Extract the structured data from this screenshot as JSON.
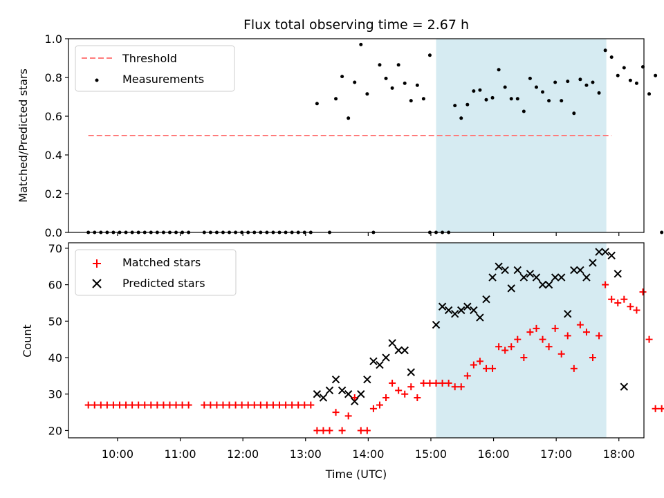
{
  "chart_data": [
    {
      "type": "scatter",
      "title": "Flux total observing time = 2.67 h",
      "ylabel": "Matched/Predicted stars",
      "ylim": [
        0,
        1.0
      ],
      "yticks": [
        0.0,
        0.2,
        0.4,
        0.6,
        0.8,
        1.0
      ],
      "ytick_labels": [
        "0.0",
        "0.2",
        "0.4",
        "0.6",
        "0.8",
        "1.0"
      ],
      "legend": {
        "placement": "top-left",
        "entries": [
          "Threshold",
          "Measurements"
        ]
      },
      "threshold": {
        "name": "Threshold",
        "value": 0.5,
        "x_range": [
          "09:32",
          "17:53"
        ],
        "color": "#ff7b7b"
      },
      "shaded_region": {
        "x": [
          "15:05",
          "17:48"
        ],
        "color": "#add8e6"
      },
      "series": [
        {
          "name": "Measurements",
          "color": "#000000",
          "points": [
            [
              "09:32",
              0
            ],
            [
              "09:38",
              0
            ],
            [
              "09:44",
              0
            ],
            [
              "09:50",
              0
            ],
            [
              "09:56",
              0
            ],
            [
              "10:02",
              0
            ],
            [
              "10:08",
              0
            ],
            [
              "10:14",
              0
            ],
            [
              "10:20",
              0
            ],
            [
              "10:26",
              0
            ],
            [
              "10:32",
              0
            ],
            [
              "10:38",
              0
            ],
            [
              "10:44",
              0
            ],
            [
              "10:50",
              0
            ],
            [
              "10:56",
              0
            ],
            [
              "11:02",
              0
            ],
            [
              "11:08",
              0
            ],
            [
              "11:23",
              0
            ],
            [
              "11:29",
              0
            ],
            [
              "11:35",
              0
            ],
            [
              "11:41",
              0
            ],
            [
              "11:47",
              0
            ],
            [
              "11:53",
              0
            ],
            [
              "11:59",
              0
            ],
            [
              "12:05",
              0
            ],
            [
              "12:11",
              0
            ],
            [
              "12:17",
              0
            ],
            [
              "12:23",
              0
            ],
            [
              "12:29",
              0
            ],
            [
              "12:35",
              0
            ],
            [
              "12:41",
              0
            ],
            [
              "12:47",
              0
            ],
            [
              "12:53",
              0
            ],
            [
              "12:59",
              0
            ],
            [
              "13:05",
              0
            ],
            [
              "13:11",
              0.665
            ],
            [
              "13:23",
              0
            ],
            [
              "13:29",
              0.69
            ],
            [
              "13:35",
              0.805
            ],
            [
              "13:41",
              0.59
            ],
            [
              "13:47",
              0.775
            ],
            [
              "13:53",
              0.97
            ],
            [
              "13:59",
              0.715
            ],
            [
              "14:05",
              0
            ],
            [
              "14:11",
              0.865
            ],
            [
              "14:17",
              0.795
            ],
            [
              "14:23",
              0.745
            ],
            [
              "14:29",
              0.865
            ],
            [
              "14:35",
              0.77
            ],
            [
              "14:41",
              0.68
            ],
            [
              "14:47",
              0.76
            ],
            [
              "14:53",
              0.69
            ],
            [
              "14:59",
              0.915
            ],
            [
              "14:59",
              0
            ],
            [
              "15:05",
              0
            ],
            [
              "15:11",
              0
            ],
            [
              "15:17",
              0
            ],
            [
              "15:23",
              0.655
            ],
            [
              "15:29",
              0.59
            ],
            [
              "15:35",
              0.66
            ],
            [
              "15:41",
              0.73
            ],
            [
              "15:47",
              0.735
            ],
            [
              "15:53",
              0.685
            ],
            [
              "15:59",
              0.695
            ],
            [
              "16:05",
              0.84
            ],
            [
              "16:11",
              0.75
            ],
            [
              "16:17",
              0.69
            ],
            [
              "16:23",
              0.69
            ],
            [
              "16:29",
              0.625
            ],
            [
              "16:35",
              0.795
            ],
            [
              "16:41",
              0.75
            ],
            [
              "16:47",
              0.725
            ],
            [
              "16:53",
              0.68
            ],
            [
              "16:59",
              0.775
            ],
            [
              "17:05",
              0.68
            ],
            [
              "17:11",
              0.78
            ],
            [
              "17:17",
              0.615
            ],
            [
              "17:23",
              0.79
            ],
            [
              "17:29",
              0.76
            ],
            [
              "17:35",
              0.775
            ],
            [
              "17:41",
              0.72
            ],
            [
              "17:47",
              0.94
            ],
            [
              "17:53",
              0.905
            ],
            [
              "17:59",
              0.81
            ],
            [
              "18:05",
              0.85
            ],
            [
              "18:11",
              0.785
            ],
            [
              "18:17",
              0.77
            ],
            [
              "18:23",
              0.855
            ],
            [
              "18:29",
              0.715
            ],
            [
              "18:35",
              0.81
            ],
            [
              "18:41",
              0
            ]
          ]
        }
      ]
    },
    {
      "type": "scatter",
      "xlabel": "Time (UTC)",
      "ylabel": "Count",
      "ylim": [
        18,
        71.5
      ],
      "yticks": [
        20,
        30,
        40,
        50,
        60,
        70
      ],
      "ytick_labels": [
        "20",
        "30",
        "40",
        "50",
        "60",
        "70"
      ],
      "xticks": [
        "10:00",
        "11:00",
        "12:00",
        "13:00",
        "14:00",
        "15:00",
        "16:00",
        "17:00",
        "18:00"
      ],
      "xlim": [
        "09:13",
        "18:24"
      ],
      "legend": {
        "placement": "top-left",
        "entries": [
          "Matched stars",
          "Predicted stars"
        ]
      },
      "shaded_region": {
        "x": [
          "15:05",
          "17:48"
        ],
        "color": "#add8e6"
      },
      "series": [
        {
          "name": "Matched stars",
          "marker": "plus",
          "color": "#ff0000",
          "points": [
            [
              "09:32",
              27
            ],
            [
              "09:38",
              27
            ],
            [
              "09:44",
              27
            ],
            [
              "09:50",
              27
            ],
            [
              "09:56",
              27
            ],
            [
              "10:02",
              27
            ],
            [
              "10:08",
              27
            ],
            [
              "10:14",
              27
            ],
            [
              "10:20",
              27
            ],
            [
              "10:26",
              27
            ],
            [
              "10:32",
              27
            ],
            [
              "10:38",
              27
            ],
            [
              "10:44",
              27
            ],
            [
              "10:50",
              27
            ],
            [
              "10:56",
              27
            ],
            [
              "11:02",
              27
            ],
            [
              "11:08",
              27
            ],
            [
              "11:23",
              27
            ],
            [
              "11:29",
              27
            ],
            [
              "11:35",
              27
            ],
            [
              "11:41",
              27
            ],
            [
              "11:47",
              27
            ],
            [
              "11:53",
              27
            ],
            [
              "11:59",
              27
            ],
            [
              "12:05",
              27
            ],
            [
              "12:11",
              27
            ],
            [
              "12:17",
              27
            ],
            [
              "12:23",
              27
            ],
            [
              "12:29",
              27
            ],
            [
              "12:35",
              27
            ],
            [
              "12:41",
              27
            ],
            [
              "12:47",
              27
            ],
            [
              "12:53",
              27
            ],
            [
              "12:59",
              27
            ],
            [
              "13:05",
              27
            ],
            [
              "13:11",
              20
            ],
            [
              "13:17",
              20
            ],
            [
              "13:23",
              20
            ],
            [
              "13:29",
              25
            ],
            [
              "13:35",
              20
            ],
            [
              "13:41",
              24
            ],
            [
              "13:47",
              29
            ],
            [
              "13:53",
              20
            ],
            [
              "13:59",
              20
            ],
            [
              "14:05",
              26
            ],
            [
              "14:11",
              27
            ],
            [
              "14:17",
              29
            ],
            [
              "14:23",
              33
            ],
            [
              "14:29",
              31
            ],
            [
              "14:35",
              30
            ],
            [
              "14:41",
              32
            ],
            [
              "14:47",
              29
            ],
            [
              "14:53",
              33
            ],
            [
              "14:59",
              33
            ],
            [
              "15:05",
              33
            ],
            [
              "15:11",
              33
            ],
            [
              "15:17",
              33
            ],
            [
              "15:23",
              32
            ],
            [
              "15:29",
              32
            ],
            [
              "15:35",
              35
            ],
            [
              "15:41",
              38
            ],
            [
              "15:47",
              39
            ],
            [
              "15:53",
              37
            ],
            [
              "15:59",
              37
            ],
            [
              "16:05",
              43
            ],
            [
              "16:11",
              42
            ],
            [
              "16:17",
              43
            ],
            [
              "16:23",
              45
            ],
            [
              "16:29",
              40
            ],
            [
              "16:35",
              47
            ],
            [
              "16:41",
              48
            ],
            [
              "16:47",
              45
            ],
            [
              "16:53",
              43
            ],
            [
              "16:59",
              48
            ],
            [
              "17:05",
              41
            ],
            [
              "17:11",
              46
            ],
            [
              "17:17",
              37
            ],
            [
              "17:23",
              49
            ],
            [
              "17:29",
              47
            ],
            [
              "17:35",
              40
            ],
            [
              "17:41",
              46
            ],
            [
              "17:47",
              60
            ],
            [
              "17:53",
              56
            ],
            [
              "17:59",
              55
            ],
            [
              "18:05",
              56
            ],
            [
              "18:11",
              54
            ],
            [
              "18:17",
              53
            ],
            [
              "18:23",
              58
            ],
            [
              "18:29",
              45
            ],
            [
              "18:35",
              26
            ],
            [
              "18:41",
              26
            ]
          ]
        },
        {
          "name": "Predicted stars",
          "marker": "x",
          "color": "#000000",
          "points": [
            [
              "13:11",
              30
            ],
            [
              "13:17",
              29
            ],
            [
              "13:23",
              31
            ],
            [
              "13:29",
              34
            ],
            [
              "13:35",
              31
            ],
            [
              "13:41",
              30
            ],
            [
              "13:47",
              28
            ],
            [
              "13:53",
              30
            ],
            [
              "13:59",
              34
            ],
            [
              "14:05",
              39
            ],
            [
              "14:11",
              38
            ],
            [
              "14:17",
              40
            ],
            [
              "14:23",
              44
            ],
            [
              "14:29",
              42
            ],
            [
              "14:35",
              42
            ],
            [
              "14:41",
              36
            ],
            [
              "15:05",
              49
            ],
            [
              "15:11",
              54
            ],
            [
              "15:17",
              53
            ],
            [
              "15:23",
              52
            ],
            [
              "15:29",
              53
            ],
            [
              "15:35",
              54
            ],
            [
              "15:41",
              53
            ],
            [
              "15:47",
              51
            ],
            [
              "15:53",
              56
            ],
            [
              "15:59",
              62
            ],
            [
              "16:05",
              65
            ],
            [
              "16:11",
              64
            ],
            [
              "16:17",
              59
            ],
            [
              "16:23",
              64
            ],
            [
              "16:29",
              62
            ],
            [
              "16:35",
              63
            ],
            [
              "16:41",
              62
            ],
            [
              "16:47",
              60
            ],
            [
              "16:53",
              60
            ],
            [
              "16:59",
              62
            ],
            [
              "17:05",
              62
            ],
            [
              "17:11",
              52
            ],
            [
              "17:17",
              64
            ],
            [
              "17:23",
              64
            ],
            [
              "17:29",
              62
            ],
            [
              "17:35",
              66
            ],
            [
              "17:41",
              69
            ],
            [
              "17:47",
              69
            ],
            [
              "17:53",
              68
            ],
            [
              "17:59",
              63
            ],
            [
              "18:05",
              32
            ]
          ]
        }
      ]
    }
  ]
}
